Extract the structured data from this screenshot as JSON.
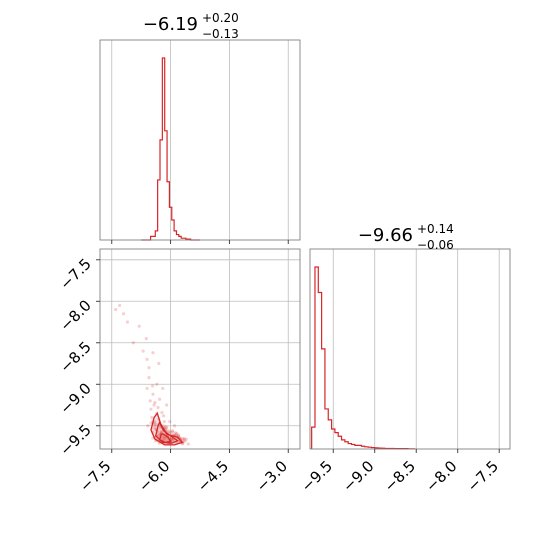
{
  "chart_data": [
    {
      "panel": "marginal-param1",
      "type": "histogram",
      "title": {
        "median": "−6.19",
        "upper": "+0.20",
        "lower": "−0.13"
      },
      "xlim": [
        -7.8,
        -2.7
      ],
      "grid": true,
      "color": "#d62728",
      "x_bin_edges": [
        -6.75,
        -6.69,
        -6.63,
        -6.57,
        -6.51,
        -6.45,
        -6.39,
        -6.33,
        -6.27,
        -6.21,
        -6.15,
        -6.09,
        -6.03,
        -5.97,
        -5.91,
        -5.85,
        -5.79,
        -5.73,
        -5.67,
        -5.61,
        -5.55,
        -5.49,
        -5.43,
        -5.37,
        -5.31,
        -5.25
      ],
      "values": [
        0,
        0,
        0,
        0,
        0.02,
        0.02,
        0.05,
        0.33,
        0.55,
        1.0,
        0.6,
        0.32,
        0.18,
        0.11,
        0.05,
        0.03,
        0.02,
        0.01,
        0.01,
        0.005,
        0.005,
        0,
        0,
        0,
        0
      ]
    },
    {
      "panel": "marginal-param2",
      "type": "histogram",
      "title": {
        "median": "−9.66",
        "upper": "+0.14",
        "lower": "−0.06"
      },
      "xlim": [
        -9.78,
        -7.37
      ],
      "grid": true,
      "color": "#d62728",
      "x_bin_edges": [
        -9.76,
        -9.72,
        -9.68,
        -9.64,
        -9.6,
        -9.56,
        -9.52,
        -9.48,
        -9.44,
        -9.4,
        -9.36,
        -9.32,
        -9.28,
        -9.24,
        -9.2,
        -9.16,
        -9.12,
        -9.08,
        -9.04,
        -9.0,
        -8.96,
        -8.92,
        -8.88,
        -8.84,
        -8.8,
        -8.76,
        -8.72,
        -8.68,
        -8.64,
        -8.6,
        -8.56,
        -8.52
      ],
      "values": [
        0.12,
        1.0,
        0.86,
        0.55,
        0.22,
        0.16,
        0.11,
        0.09,
        0.07,
        0.05,
        0.04,
        0.03,
        0.025,
        0.02,
        0.02,
        0.015,
        0.012,
        0.01,
        0.008,
        0.006,
        0.005,
        0.004,
        0.003,
        0.003,
        0.003,
        0.002,
        0.002,
        0.002,
        0.002,
        0.001,
        0.001
      ],
      "tick_labels": [
        "−9.5",
        "−9.0",
        "−8.5",
        "−8.0",
        "−7.5"
      ],
      "tick_values": [
        -9.5,
        -9.0,
        -8.5,
        -8.0,
        -7.5
      ]
    },
    {
      "panel": "joint",
      "type": "scatter",
      "xlim": [
        -7.8,
        -2.7
      ],
      "ylim": [
        -9.78,
        -7.37
      ],
      "grid": true,
      "color": "#d62728",
      "x_tick_labels": [
        "−7.5",
        "−6.0",
        "−4.5",
        "−3.0"
      ],
      "x_tick_values": [
        -7.5,
        -6.0,
        -4.5,
        -3.0
      ],
      "y_tick_labels": [
        "−7.5",
        "−8.0",
        "−8.5",
        "−9.0",
        "−9.5"
      ],
      "y_tick_values": [
        -7.5,
        -8.0,
        -8.5,
        -9.0,
        -9.5
      ],
      "points": [
        [
          -7.4,
          -8.1
        ],
        [
          -7.3,
          -8.05
        ],
        [
          -7.2,
          -8.15
        ],
        [
          -7.1,
          -8.25
        ],
        [
          -6.95,
          -8.5
        ],
        [
          -6.8,
          -8.3
        ],
        [
          -6.7,
          -8.6
        ],
        [
          -6.6,
          -8.7
        ],
        [
          -6.45,
          -8.62
        ],
        [
          -6.3,
          -8.75
        ],
        [
          -6.55,
          -8.92
        ],
        [
          -6.35,
          -9.0
        ],
        [
          -6.2,
          -9.05
        ],
        [
          -6.45,
          -9.12
        ],
        [
          -6.28,
          -9.18
        ],
        [
          -6.1,
          -9.25
        ],
        [
          -6.5,
          -9.3
        ],
        [
          -6.35,
          -9.35
        ],
        [
          -6.18,
          -9.38
        ],
        [
          -6.02,
          -9.45
        ],
        [
          -6.4,
          -9.45
        ],
        [
          -6.25,
          -9.5
        ],
        [
          -6.1,
          -9.52
        ],
        [
          -5.95,
          -9.56
        ],
        [
          -5.8,
          -9.62
        ],
        [
          -6.45,
          -9.58
        ],
        [
          -6.3,
          -9.62
        ],
        [
          -6.15,
          -9.65
        ],
        [
          -6.0,
          -9.68
        ],
        [
          -5.85,
          -9.7
        ],
        [
          -5.7,
          -9.7
        ],
        [
          -5.55,
          -9.72
        ],
        [
          -6.38,
          -9.68
        ],
        [
          -6.22,
          -9.7
        ],
        [
          -6.06,
          -9.71
        ],
        [
          -6.48,
          -9.4
        ],
        [
          -6.32,
          -9.28
        ],
        [
          -6.16,
          -9.45
        ],
        [
          -6.0,
          -9.58
        ],
        [
          -5.65,
          -9.66
        ],
        [
          -6.6,
          -9.05
        ],
        [
          -6.52,
          -9.2
        ],
        [
          -6.42,
          -9.25
        ],
        [
          -6.58,
          -9.5
        ],
        [
          -5.9,
          -9.5
        ],
        [
          -5.75,
          -9.66
        ],
        [
          -6.36,
          -9.55
        ],
        [
          -6.26,
          -9.6
        ],
        [
          -6.12,
          -9.58
        ],
        [
          -5.98,
          -9.64
        ],
        [
          -6.42,
          -9.64
        ],
        [
          -6.2,
          -9.68
        ],
        [
          -6.08,
          -9.62
        ],
        [
          -5.92,
          -9.66
        ],
        [
          -6.3,
          -9.42
        ],
        [
          -6.22,
          -9.34
        ],
        [
          -6.4,
          -9.22
        ],
        [
          -6.46,
          -9.02
        ],
        [
          -6.55,
          -8.8
        ],
        [
          -6.62,
          -8.45
        ]
      ],
      "contour_levels": [
        [
          [
            -6.42,
            -9.4
          ],
          [
            -6.5,
            -9.55
          ],
          [
            -6.4,
            -9.66
          ],
          [
            -6.15,
            -9.73
          ],
          [
            -5.9,
            -9.73
          ],
          [
            -5.7,
            -9.7
          ],
          [
            -5.82,
            -9.64
          ],
          [
            -6.1,
            -9.6
          ],
          [
            -6.25,
            -9.48
          ],
          [
            -6.34,
            -9.35
          ],
          [
            -6.42,
            -9.4
          ]
        ],
        [
          [
            -6.32,
            -9.5
          ],
          [
            -6.38,
            -9.62
          ],
          [
            -6.2,
            -9.7
          ],
          [
            -5.98,
            -9.71
          ],
          [
            -5.82,
            -9.68
          ],
          [
            -6.0,
            -9.62
          ],
          [
            -6.18,
            -9.56
          ],
          [
            -6.28,
            -9.46
          ],
          [
            -6.32,
            -9.5
          ]
        ],
        [
          [
            -6.24,
            -9.6
          ],
          [
            -6.28,
            -9.67
          ],
          [
            -6.14,
            -9.7
          ],
          [
            -6.0,
            -9.69
          ],
          [
            -6.06,
            -9.64
          ],
          [
            -6.18,
            -9.6
          ],
          [
            -6.24,
            -9.6
          ]
        ]
      ]
    }
  ]
}
